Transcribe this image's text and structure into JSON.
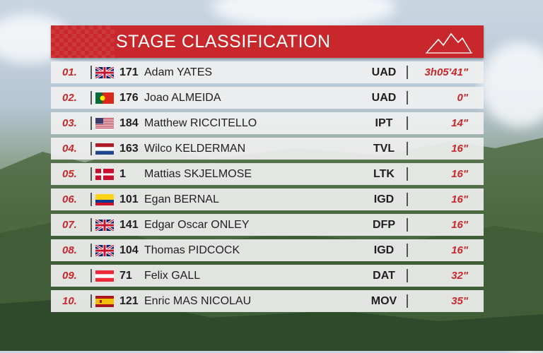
{
  "header": {
    "title": "STAGE CLASSIFICATION",
    "accent": "#c8282b"
  },
  "rows": [
    {
      "pos": "01.",
      "flag": "gb-flag-icon",
      "bib": "171",
      "name": "Adam YATES",
      "team": "UAD",
      "time": "3h05'41\""
    },
    {
      "pos": "02.",
      "flag": "pt-flag-icon",
      "bib": "176",
      "name": "Joao ALMEIDA",
      "team": "UAD",
      "time": "0\""
    },
    {
      "pos": "03.",
      "flag": "us-flag-icon",
      "bib": "184",
      "name": "Matthew RICCITELLO",
      "team": "IPT",
      "time": "14\""
    },
    {
      "pos": "04.",
      "flag": "nl-flag-icon",
      "bib": "163",
      "name": "Wilco KELDERMAN",
      "team": "TVL",
      "time": "16\""
    },
    {
      "pos": "05.",
      "flag": "dk-flag-icon",
      "bib": "1",
      "name": "Mattias SKJELMOSE",
      "team": "LTK",
      "time": "16\""
    },
    {
      "pos": "06.",
      "flag": "co-flag-icon",
      "bib": "101",
      "name": "Egan BERNAL",
      "team": "IGD",
      "time": "16\""
    },
    {
      "pos": "07.",
      "flag": "gb-flag-icon",
      "bib": "141",
      "name": "Edgar Oscar ONLEY",
      "team": "DFP",
      "time": "16\""
    },
    {
      "pos": "08.",
      "flag": "gb-flag-icon",
      "bib": "104",
      "name": "Thomas PIDCOCK",
      "team": "IGD",
      "time": "16\""
    },
    {
      "pos": "09.",
      "flag": "at-flag-icon",
      "bib": "71",
      "name": "Felix GALL",
      "team": "DAT",
      "time": "32\""
    },
    {
      "pos": "10.",
      "flag": "es-flag-icon",
      "bib": "121",
      "name": "Enric MAS NICOLAU",
      "team": "MOV",
      "time": "35\""
    }
  ]
}
